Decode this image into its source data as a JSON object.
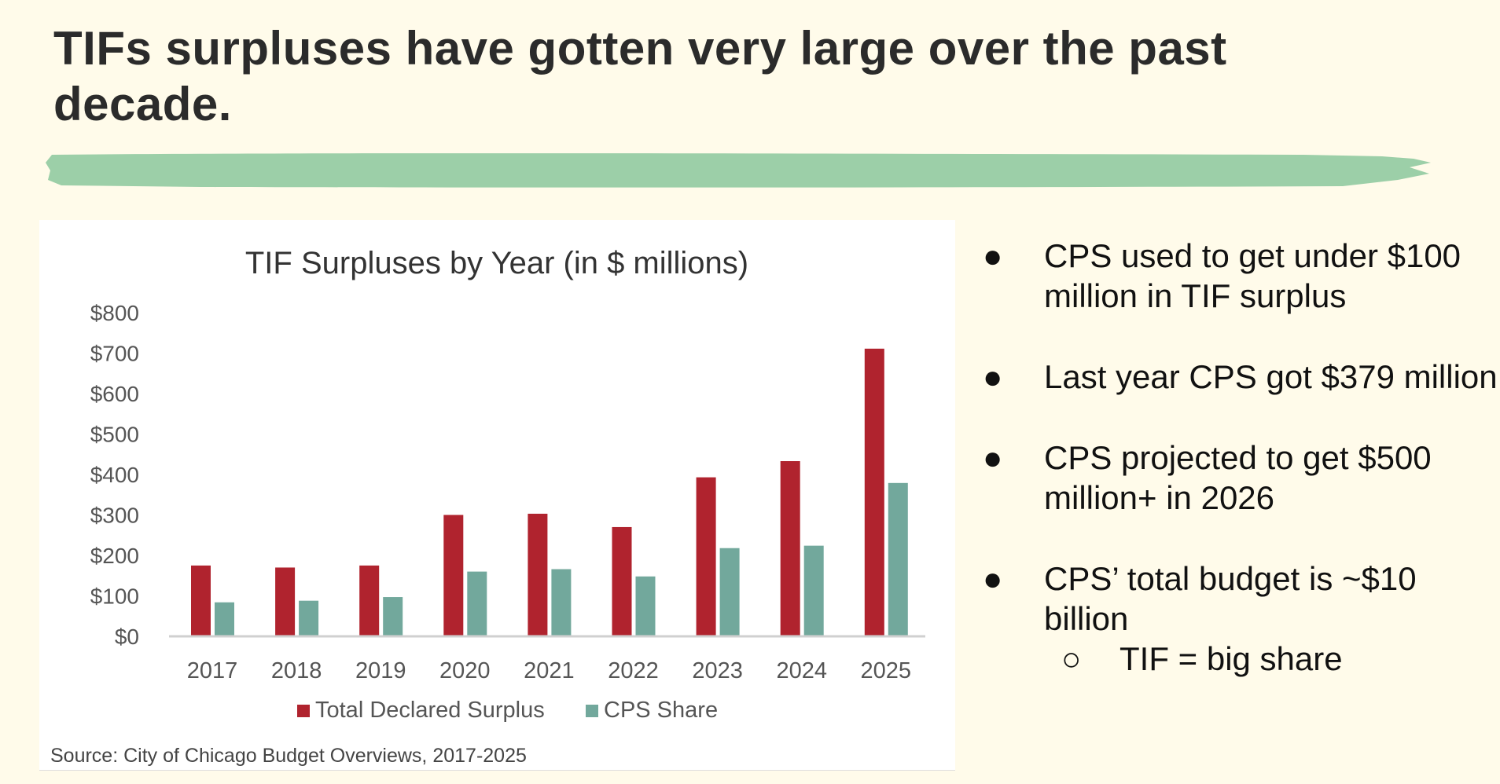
{
  "slide": {
    "title_line1": "TIFs surpluses have gotten very large over the past",
    "title_line2": "decade.",
    "accent_color": "#9ccfa8",
    "background": "#fffbea"
  },
  "bullets": [
    {
      "text": "CPS used to get under $100 million in TIF surplus"
    },
    {
      "text": "Last year CPS got $379 million"
    },
    {
      "text": "CPS projected to get $500 million+ in 2026"
    },
    {
      "text": "CPS’ total budget is ~$10 billion",
      "sub": "TIF = big share"
    }
  ],
  "bullet_glyph": "●",
  "sub_bullet_glyph": "○",
  "chart_data": {
    "type": "bar",
    "title": "TIF Surpluses by Year (in $ millions)",
    "categories": [
      "2017",
      "2018",
      "2019",
      "2020",
      "2021",
      "2022",
      "2023",
      "2024",
      "2025"
    ],
    "series": [
      {
        "name": "Total Declared Surplus",
        "color": "#b0232e",
        "values": [
          175,
          170,
          175,
          300,
          303,
          270,
          393,
          433,
          711
        ]
      },
      {
        "name": "CPS Share",
        "color": "#72a89c",
        "values": [
          84,
          88,
          97,
          160,
          166,
          148,
          218,
          224,
          379
        ]
      }
    ],
    "yticks": [
      "$0",
      "$100",
      "$200",
      "$300",
      "$400",
      "$500",
      "$600",
      "$700",
      "$800"
    ],
    "ylim": [
      0,
      800
    ],
    "grid": false,
    "legend": "bottom",
    "source": "Source: City of Chicago Budget Overviews, 2017-2025"
  }
}
